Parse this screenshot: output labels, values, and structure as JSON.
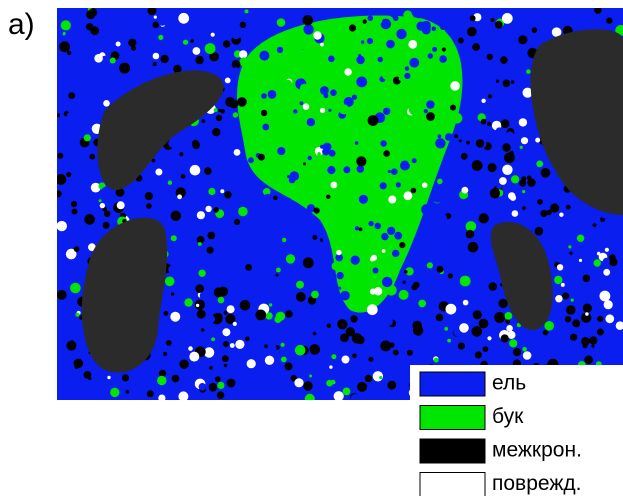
{
  "panel_label": "a)",
  "legend": [
    {
      "label": "ель",
      "color": "#0a1ef0"
    },
    {
      "label": "бук",
      "color": "#00e600"
    },
    {
      "label": "межкрон.",
      "color": "#000000"
    },
    {
      "label": "поврежд.",
      "color": "#ffffff"
    }
  ]
}
